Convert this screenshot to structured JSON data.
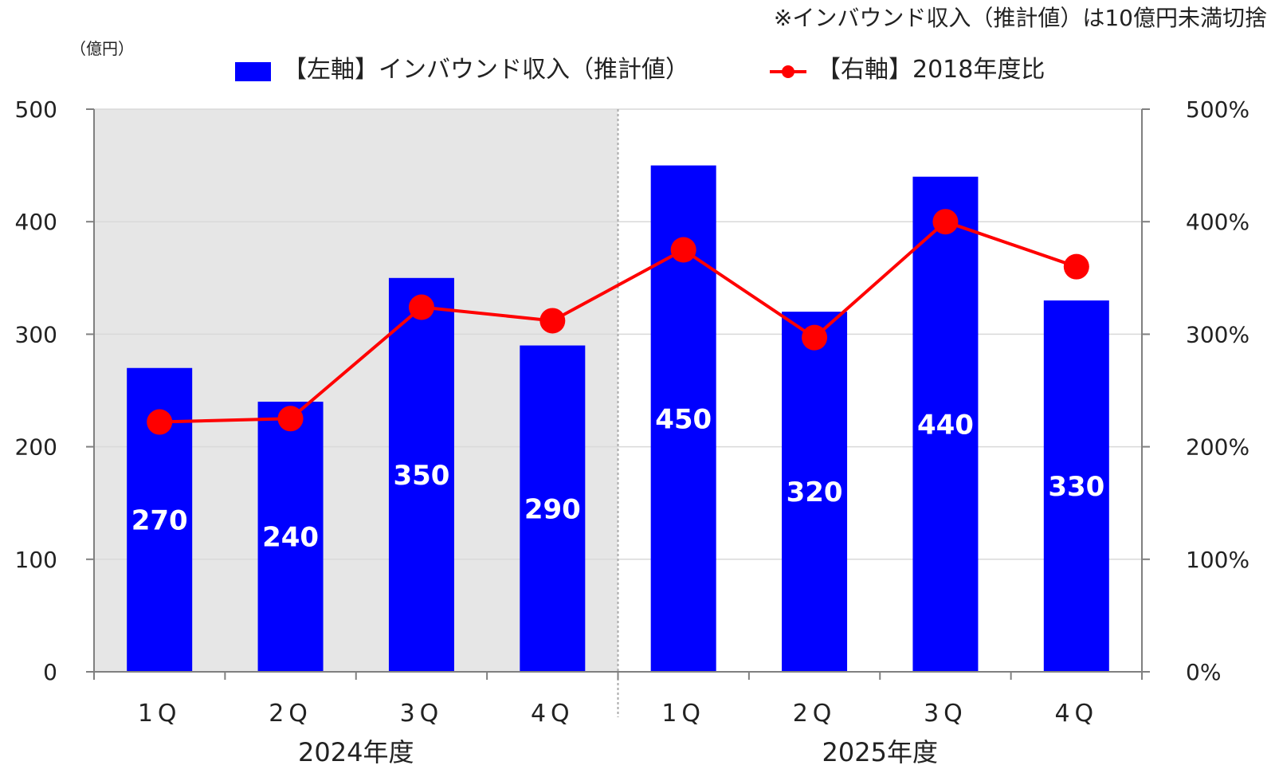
{
  "note": "※インバウンド収入（推計値）は10億円未満切捨",
  "unit_label": "（億円）",
  "legend": {
    "bar_label": "【左軸】インバウンド収入（推計値）",
    "line_label": "【右軸】2018年度比"
  },
  "colors": {
    "bar": "#0000ff",
    "line": "#ff0000",
    "shaded_bg": "#e6e6e6",
    "grid": "#d9d9d9"
  },
  "chart_data": {
    "type": "bar",
    "categories": [
      "1Q",
      "2Q",
      "3Q",
      "4Q",
      "1Q",
      "2Q",
      "3Q",
      "4Q"
    ],
    "groups": [
      {
        "label": "2024年度",
        "span": [
          0,
          3
        ],
        "shaded": true
      },
      {
        "label": "2025年度",
        "span": [
          4,
          7
        ],
        "shaded": false
      }
    ],
    "series": [
      {
        "name": "【左軸】インバウンド収入（推計値）",
        "type": "bar",
        "axis": "left",
        "values": [
          270,
          240,
          350,
          290,
          450,
          320,
          440,
          330
        ]
      },
      {
        "name": "【右軸】2018年度比",
        "type": "line",
        "axis": "right",
        "values": [
          222,
          225,
          324,
          312,
          375,
          297,
          400,
          360
        ]
      }
    ],
    "y_left": {
      "min": 0,
      "max": 500,
      "ticks": [
        "0",
        "100",
        "200",
        "300",
        "400",
        "500"
      ]
    },
    "y_right": {
      "min": 0,
      "max": 500,
      "ticks": [
        "0%",
        "100%",
        "200%",
        "300%",
        "400%",
        "500%"
      ]
    },
    "grid": true,
    "legend_position": "top"
  }
}
